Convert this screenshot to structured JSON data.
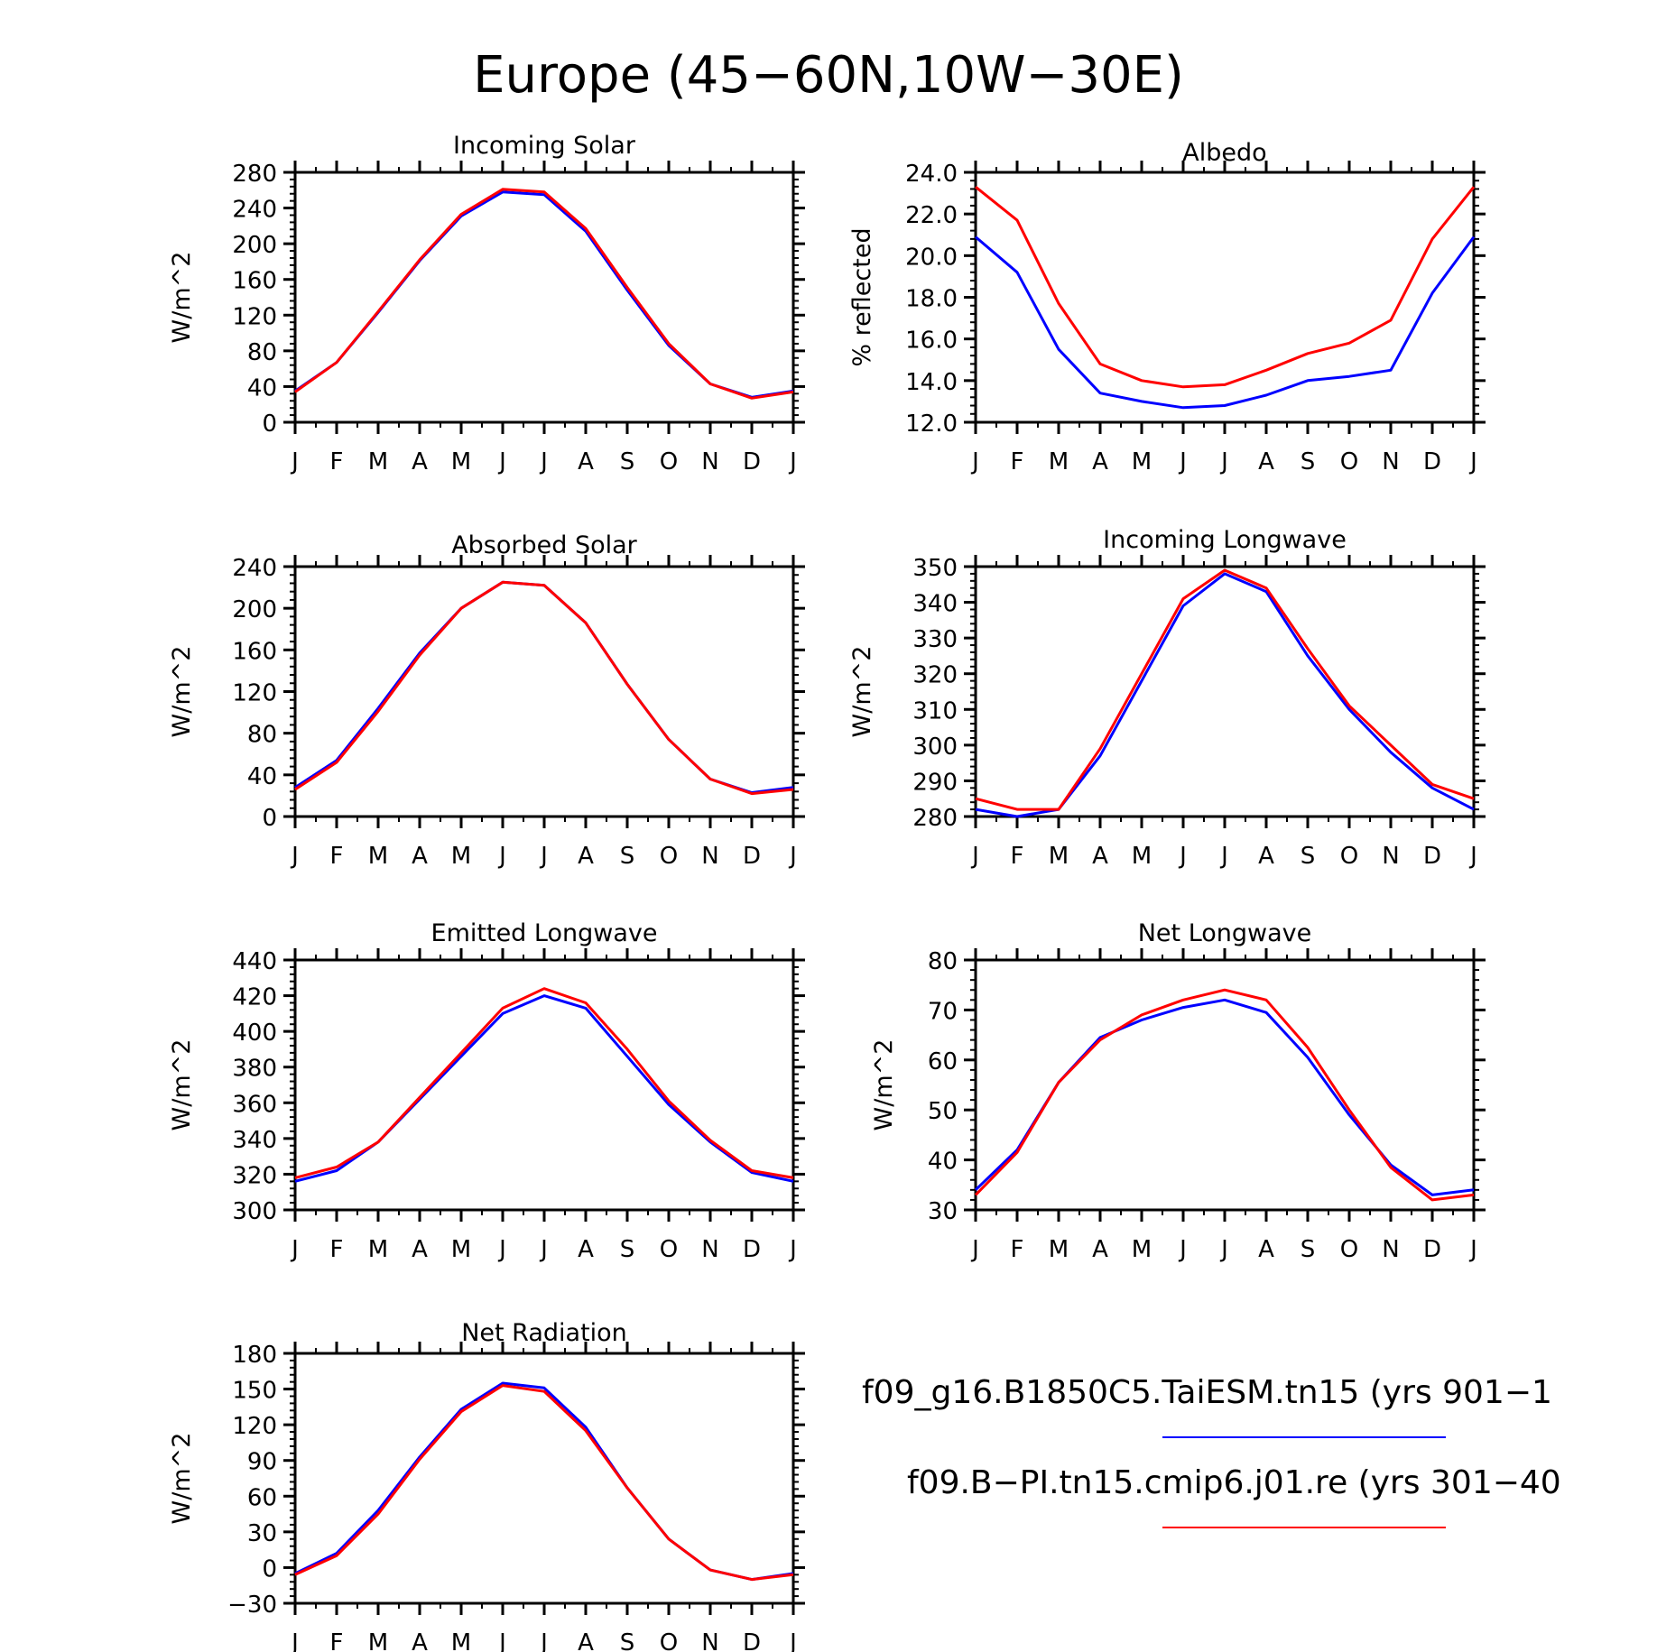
{
  "title": "Europe (45−60N,10W−30E)",
  "months": [
    "J",
    "F",
    "M",
    "A",
    "M",
    "J",
    "J",
    "A",
    "S",
    "O",
    "N",
    "D",
    "J"
  ],
  "colors": {
    "series1": "#0000ff",
    "series2": "#ff0000",
    "axis": "#000000"
  },
  "legend": [
    {
      "label": "f09_g16.B1850C5.TaiESM.tn15 (yrs 901−1",
      "color": "#0000ff"
    },
    {
      "label": "f09.B−PI.tn15.cmip6.j01.re (yrs 301−40",
      "color": "#ff0000"
    }
  ],
  "chart_data": [
    {
      "type": "line",
      "title": "Incoming Solar",
      "ylabel": "W/m^2",
      "ylim": [
        0,
        280
      ],
      "yticks": [
        "0",
        "40",
        "80",
        "120",
        "160",
        "200",
        "240",
        "280"
      ],
      "series": [
        {
          "values": [
            35,
            67,
            123,
            181,
            231,
            258,
            255,
            214,
            148,
            86,
            43,
            28,
            35
          ]
        },
        {
          "values": [
            34,
            67,
            124,
            182,
            233,
            261,
            258,
            217,
            151,
            88,
            43,
            27,
            34
          ]
        }
      ]
    },
    {
      "type": "line",
      "title": "Albedo",
      "ylabel": "% reflected",
      "ylim": [
        12,
        24
      ],
      "yticks": [
        "12.0",
        "14.0",
        "16.0",
        "18.0",
        "20.0",
        "22.0",
        "24.0"
      ],
      "series": [
        {
          "values": [
            20.9,
            19.2,
            15.5,
            13.4,
            13.0,
            12.7,
            12.8,
            13.3,
            14.0,
            14.2,
            14.5,
            18.2,
            20.9
          ]
        },
        {
          "values": [
            23.3,
            21.7,
            17.7,
            14.8,
            14.0,
            13.7,
            13.8,
            14.5,
            15.3,
            15.8,
            16.9,
            20.8,
            23.3
          ]
        }
      ]
    },
    {
      "type": "line",
      "title": "Absorbed Solar",
      "ylabel": "W/m^2",
      "ylim": [
        0,
        240
      ],
      "yticks": [
        "0",
        "40",
        "80",
        "120",
        "160",
        "200",
        "240"
      ],
      "series": [
        {
          "values": [
            28,
            54,
            104,
            157,
            200,
            225,
            222,
            186,
            127,
            74,
            36,
            23,
            28
          ]
        },
        {
          "values": [
            26,
            52,
            101,
            155,
            200,
            225,
            222,
            186,
            127,
            74,
            36,
            22,
            26
          ]
        }
      ]
    },
    {
      "type": "line",
      "title": "Incoming Longwave",
      "ylabel": "W/m^2",
      "ylim": [
        280,
        350
      ],
      "yticks": [
        "280",
        "290",
        "300",
        "310",
        "320",
        "330",
        "340",
        "350"
      ],
      "series": [
        {
          "values": [
            282,
            280,
            282,
            297,
            318,
            339,
            348,
            343,
            325,
            310,
            298,
            288,
            282
          ]
        },
        {
          "values": [
            285,
            282,
            282,
            299,
            320,
            341,
            349,
            344,
            327,
            311,
            300,
            289,
            285
          ]
        }
      ]
    },
    {
      "type": "line",
      "title": "Emitted Longwave",
      "ylabel": "W/m^2",
      "ylim": [
        300,
        440
      ],
      "yticks": [
        "300",
        "320",
        "340",
        "360",
        "380",
        "400",
        "420",
        "440"
      ],
      "series": [
        {
          "values": [
            316,
            322,
            338,
            362,
            386,
            410,
            420,
            413,
            386,
            359,
            338,
            321,
            316
          ]
        },
        {
          "values": [
            318,
            324,
            338,
            363,
            388,
            413,
            424,
            416,
            390,
            361,
            339,
            322,
            318
          ]
        }
      ]
    },
    {
      "type": "line",
      "title": "Net Longwave",
      "ylabel": "W/m^2",
      "ylim": [
        30,
        80
      ],
      "yticks": [
        "30",
        "40",
        "50",
        "60",
        "70",
        "80"
      ],
      "series": [
        {
          "values": [
            34,
            42,
            55.5,
            64.5,
            68,
            70.5,
            72,
            69.5,
            60.5,
            49,
            39,
            33,
            34
          ]
        },
        {
          "values": [
            33,
            41.5,
            55.5,
            64,
            69,
            72,
            74,
            72,
            62.5,
            50,
            38.5,
            32,
            33
          ]
        }
      ]
    },
    {
      "type": "line",
      "title": "Net Radiation",
      "ylabel": "W/m^2",
      "ylim": [
        -30,
        180
      ],
      "yticks": [
        "−30",
        "0",
        "30",
        "60",
        "90",
        "120",
        "150",
        "180"
      ],
      "series": [
        {
          "values": [
            -5,
            12,
            48,
            93,
            133,
            155,
            151,
            118,
            67,
            24,
            -2,
            -10,
            -5
          ]
        },
        {
          "values": [
            -6,
            10,
            45,
            91,
            131,
            153,
            148,
            115,
            67,
            24,
            -2,
            -10,
            -6
          ]
        }
      ]
    }
  ]
}
